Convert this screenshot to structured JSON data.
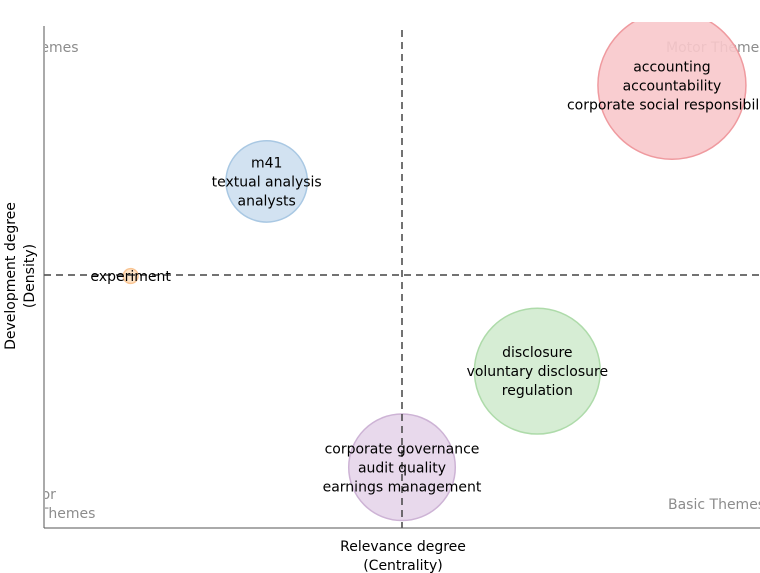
{
  "chart_data": {
    "type": "scatter",
    "subtype": "bubble",
    "xlabel": [
      "Relevance degree",
      "(Centrality)"
    ],
    "ylabel": [
      "Development degree",
      "(Density)"
    ],
    "xlim": [
      0,
      1
    ],
    "ylim": [
      0,
      1
    ],
    "x_tick_labels_shown": false,
    "y_tick_labels_shown": false,
    "grid": false,
    "reference_lines": {
      "x": 0.5,
      "y": 0.5,
      "style": "dashed"
    },
    "quadrant_labels": {
      "top_left": [
        "Niche Themes"
      ],
      "top_right": [
        "Motor Themes"
      ],
      "bottom_left": [
        "Emerging or",
        "Declining Themes"
      ],
      "bottom_right": [
        "Basic Themes"
      ]
    },
    "bubbles": [
      {
        "labels": [
          "accounting",
          "accountability",
          "corporate social responsibility"
        ],
        "x": 0.877,
        "y": 0.875,
        "size": 1.0,
        "color": "#f8c8cb",
        "stroke": "#ef9a9f"
      },
      {
        "labels": [
          "m41",
          "textual analysis",
          "analysts"
        ],
        "x": 0.311,
        "y": 0.685,
        "size": 0.55,
        "color": "#cddff0",
        "stroke": "#a9c8e3"
      },
      {
        "labels": [
          "experiment"
        ],
        "x": 0.121,
        "y": 0.498,
        "size": 0.1,
        "color": "#fde0c0",
        "stroke": "#f9c594"
      },
      {
        "labels": [
          "disclosure",
          "voluntary disclosure",
          "regulation"
        ],
        "x": 0.689,
        "y": 0.31,
        "size": 0.85,
        "color": "#d1ebcf",
        "stroke": "#aedbaa"
      },
      {
        "labels": [
          "corporate governance",
          "audit quality",
          "earnings management"
        ],
        "x": 0.5,
        "y": 0.12,
        "size": 0.72,
        "color": "#e6d5ea",
        "stroke": "#cdb3d5"
      }
    ]
  }
}
